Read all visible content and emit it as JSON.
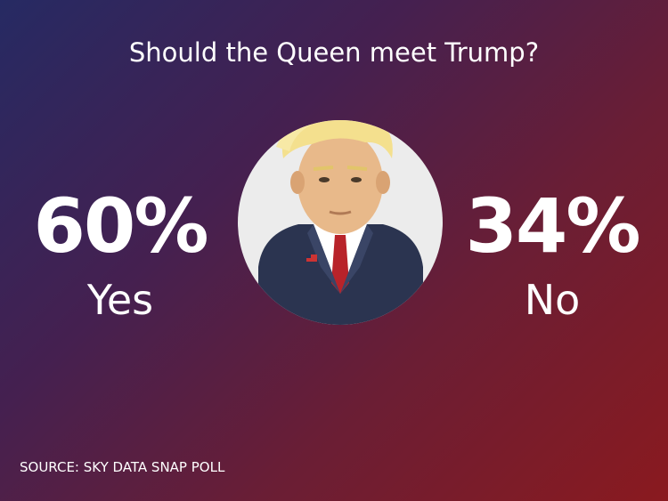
{
  "title": "Should the Queen meet Trump?",
  "results": [
    {
      "figure": "60%",
      "label": "Yes"
    },
    {
      "figure": "34%",
      "label": "No"
    }
  ],
  "source": "SOURCE: SKY DATA SNAP POLL"
}
